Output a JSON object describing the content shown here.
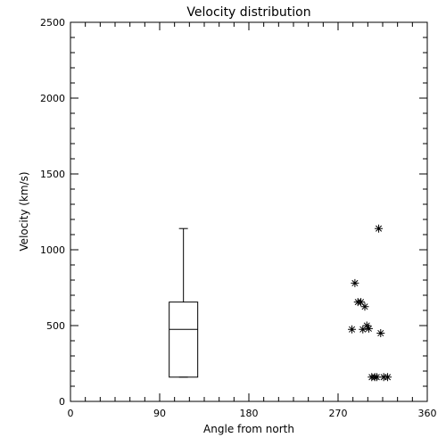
{
  "chart_data": {
    "type": "scatter",
    "title": "Velocity distribution",
    "xlabel": "Angle from north",
    "ylabel": "Velocity (km/s)",
    "xlim": [
      0,
      360
    ],
    "ylim": [
      0,
      2500
    ],
    "x_ticks": [
      0,
      90,
      180,
      270,
      360
    ],
    "y_ticks": [
      0,
      500,
      1000,
      1500,
      2000,
      2500
    ],
    "grid": false,
    "legend": "none",
    "boxplot": {
      "x": 114,
      "min": 160,
      "q1": 160,
      "median": 475,
      "q3": 655,
      "max": 1140
    },
    "points": [
      {
        "x": 284,
        "y": 475
      },
      {
        "x": 287,
        "y": 780
      },
      {
        "x": 290,
        "y": 655
      },
      {
        "x": 293,
        "y": 655
      },
      {
        "x": 295,
        "y": 475
      },
      {
        "x": 297,
        "y": 625
      },
      {
        "x": 299,
        "y": 500
      },
      {
        "x": 301,
        "y": 480
      },
      {
        "x": 304,
        "y": 160
      },
      {
        "x": 307,
        "y": 160
      },
      {
        "x": 309,
        "y": 160
      },
      {
        "x": 311,
        "y": 1140
      },
      {
        "x": 313,
        "y": 450
      },
      {
        "x": 316,
        "y": 160
      },
      {
        "x": 320,
        "y": 160
      }
    ],
    "marker": "asterisk",
    "colors": {
      "ink": "#000000",
      "background": "#ffffff"
    }
  }
}
